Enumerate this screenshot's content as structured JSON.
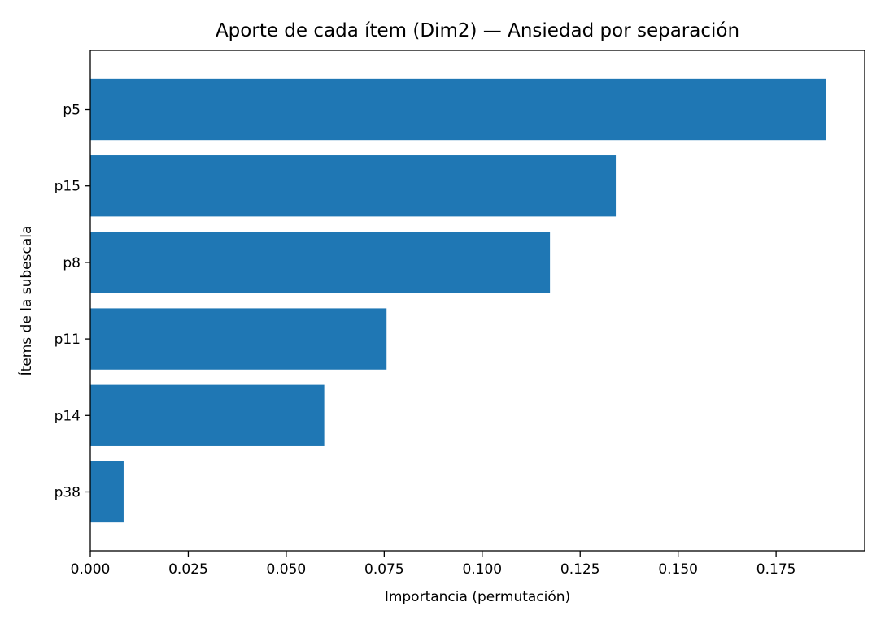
{
  "chart_data": {
    "type": "bar",
    "orientation": "horizontal",
    "title": "Aporte de cada ítem (Dim2) — Ansiedad por separación",
    "xlabel": "Importancia (permutación)",
    "ylabel": "Ítems de la subescala",
    "categories": [
      "p5",
      "p15",
      "p8",
      "p11",
      "p14",
      "p38"
    ],
    "values": [
      0.1878,
      0.1341,
      0.1173,
      0.0756,
      0.0597,
      0.0085
    ],
    "xlim": [
      0,
      0.1976
    ],
    "xticks": [
      0.0,
      0.025,
      0.05,
      0.075,
      0.1,
      0.125,
      0.15,
      0.175
    ],
    "xtick_labels": [
      "0.000",
      "0.025",
      "0.050",
      "0.075",
      "0.100",
      "0.125",
      "0.150",
      "0.175"
    ],
    "bar_color": "#1f77b4",
    "grid": false,
    "legend": "none"
  }
}
